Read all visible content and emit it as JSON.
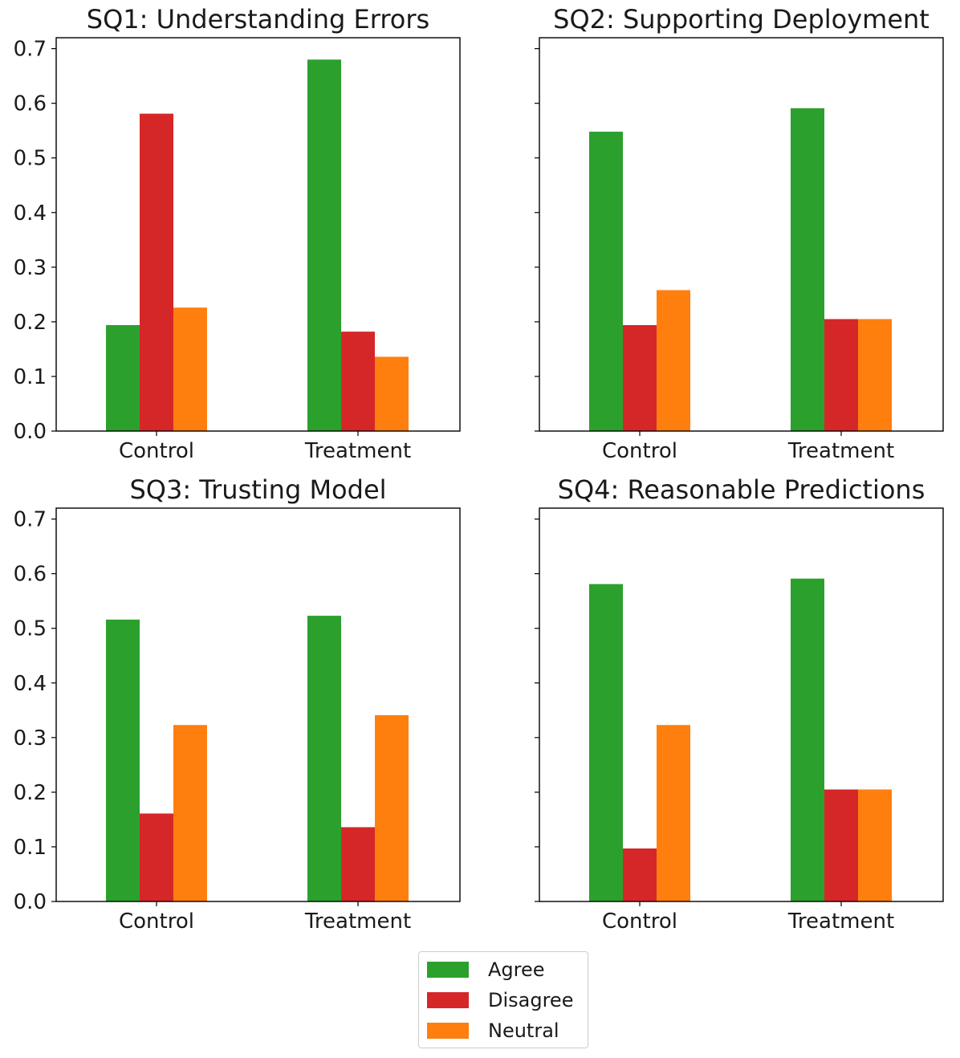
{
  "chart_data": [
    {
      "type": "bar",
      "title": "SQ1: Understanding Errors",
      "categories": [
        "Control",
        "Treatment"
      ],
      "series": [
        {
          "name": "Agree",
          "values": [
            0.194,
            0.68
          ]
        },
        {
          "name": "Disagree",
          "values": [
            0.581,
            0.182
          ]
        },
        {
          "name": "Neutral",
          "values": [
            0.226,
            0.136
          ]
        }
      ],
      "ylim": [
        0,
        0.72
      ],
      "yticks": [
        "0.0",
        "0.1",
        "0.2",
        "0.3",
        "0.4",
        "0.5",
        "0.6",
        "0.7"
      ],
      "show_ytick_labels": true
    },
    {
      "type": "bar",
      "title": "SQ2: Supporting Deployment",
      "categories": [
        "Control",
        "Treatment"
      ],
      "series": [
        {
          "name": "Agree",
          "values": [
            0.548,
            0.591
          ]
        },
        {
          "name": "Disagree",
          "values": [
            0.194,
            0.205
          ]
        },
        {
          "name": "Neutral",
          "values": [
            0.258,
            0.205
          ]
        }
      ],
      "ylim": [
        0,
        0.72
      ],
      "yticks": [
        "0.0",
        "0.1",
        "0.2",
        "0.3",
        "0.4",
        "0.5",
        "0.6",
        "0.7"
      ],
      "show_ytick_labels": false
    },
    {
      "type": "bar",
      "title": "SQ3: Trusting Model",
      "categories": [
        "Control",
        "Treatment"
      ],
      "series": [
        {
          "name": "Agree",
          "values": [
            0.516,
            0.523
          ]
        },
        {
          "name": "Disagree",
          "values": [
            0.161,
            0.136
          ]
        },
        {
          "name": "Neutral",
          "values": [
            0.323,
            0.341
          ]
        }
      ],
      "ylim": [
        0,
        0.72
      ],
      "yticks": [
        "0.0",
        "0.1",
        "0.2",
        "0.3",
        "0.4",
        "0.5",
        "0.6",
        "0.7"
      ],
      "show_ytick_labels": true
    },
    {
      "type": "bar",
      "title": "SQ4: Reasonable Predictions",
      "categories": [
        "Control",
        "Treatment"
      ],
      "series": [
        {
          "name": "Agree",
          "values": [
            0.581,
            0.591
          ]
        },
        {
          "name": "Disagree",
          "values": [
            0.097,
            0.205
          ]
        },
        {
          "name": "Neutral",
          "values": [
            0.323,
            0.205
          ]
        }
      ],
      "ylim": [
        0,
        0.72
      ],
      "yticks": [
        "0.0",
        "0.1",
        "0.2",
        "0.3",
        "0.4",
        "0.5",
        "0.6",
        "0.7"
      ],
      "show_ytick_labels": false
    }
  ],
  "legend": {
    "placement": "bottom-center",
    "items": [
      {
        "label": "Agree",
        "color": "#2ca02c"
      },
      {
        "label": "Disagree",
        "color": "#d62728"
      },
      {
        "label": "Neutral",
        "color": "#ff7f0e"
      }
    ]
  },
  "colors": {
    "Agree": "#2ca02c",
    "Disagree": "#d62728",
    "Neutral": "#ff7f0e"
  }
}
